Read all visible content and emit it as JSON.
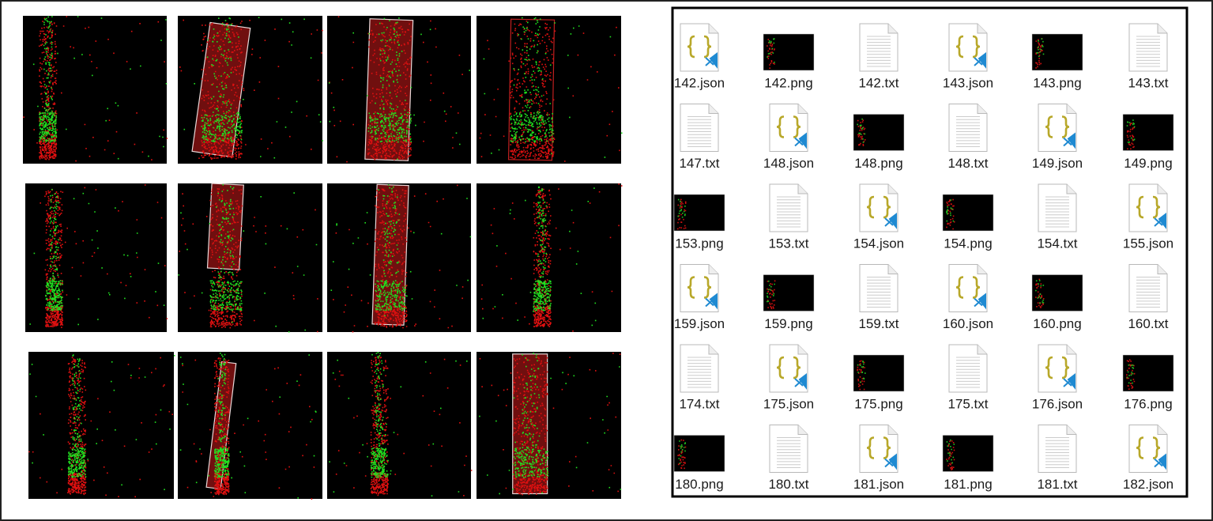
{
  "files": [
    {
      "name": "142.json"
    },
    {
      "name": "142.png"
    },
    {
      "name": "142.txt"
    },
    {
      "name": "143.json"
    },
    {
      "name": "143.png"
    },
    {
      "name": "143.txt"
    },
    {
      "name": "147.txt"
    },
    {
      "name": "148.json"
    },
    {
      "name": "148.png"
    },
    {
      "name": "148.txt"
    },
    {
      "name": "149.json"
    },
    {
      "name": "149.png"
    },
    {
      "name": "153.png"
    },
    {
      "name": "153.txt"
    },
    {
      "name": "154.json"
    },
    {
      "name": "154.png"
    },
    {
      "name": "154.txt"
    },
    {
      "name": "155.json"
    },
    {
      "name": "159.json"
    },
    {
      "name": "159.png"
    },
    {
      "name": "159.txt"
    },
    {
      "name": "160.json"
    },
    {
      "name": "160.png"
    },
    {
      "name": "160.txt"
    },
    {
      "name": "174.txt"
    },
    {
      "name": "175.json"
    },
    {
      "name": "175.png"
    },
    {
      "name": "175.txt"
    },
    {
      "name": "176.json"
    },
    {
      "name": "176.png"
    },
    {
      "name": "180.png"
    },
    {
      "name": "180.txt"
    },
    {
      "name": "181.json"
    },
    {
      "name": "181.png"
    },
    {
      "name": "181.txt"
    },
    {
      "name": "182.json"
    }
  ]
}
